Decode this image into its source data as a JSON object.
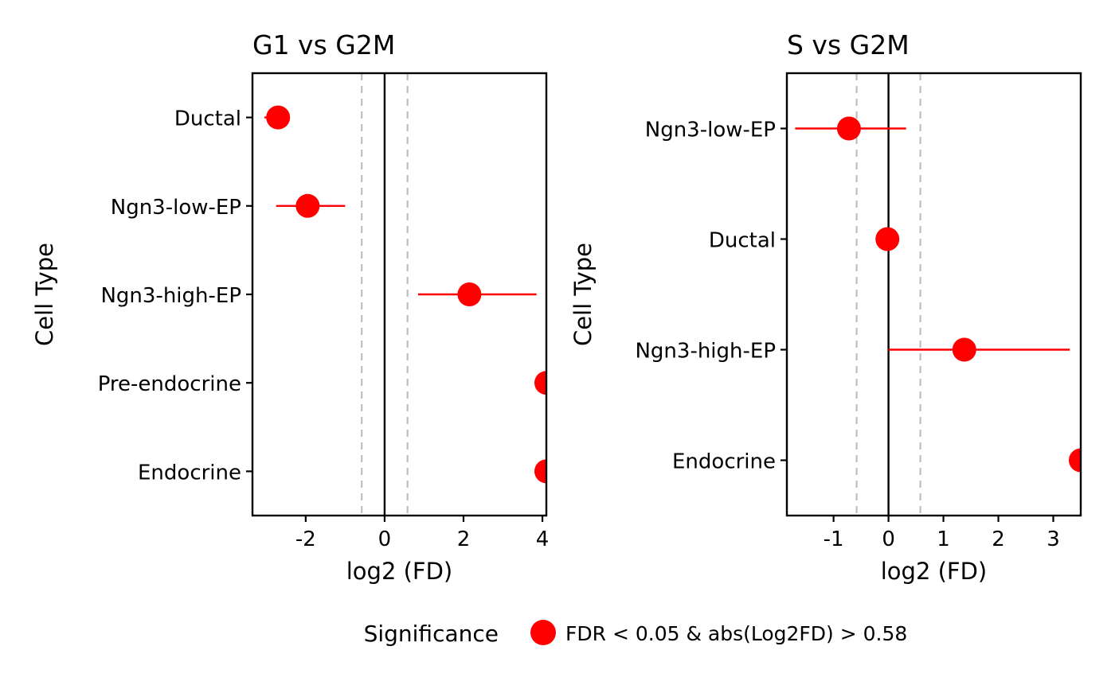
{
  "chart_data": [
    {
      "type": "scatter",
      "title": "G1 vs G2M",
      "xlabel": "log2 (FD)",
      "ylabel": "Cell Type",
      "xlim": [
        -3.35,
        4.1
      ],
      "xticks": [
        -2,
        0,
        2,
        4
      ],
      "xtick_labels": [
        "-2",
        "0",
        "2",
        "4"
      ],
      "categories": [
        "Ductal",
        "Ngn3-low-EP",
        "Ngn3-high-EP",
        "Pre-endocrine",
        "Endocrine"
      ],
      "points": [
        {
          "category": "Ductal",
          "x": -2.7,
          "lo": -3.05,
          "hi": -2.45
        },
        {
          "category": "Ngn3-low-EP",
          "x": -1.95,
          "lo": -2.75,
          "hi": -1.0
        },
        {
          "category": "Ngn3-high-EP",
          "x": 2.15,
          "lo": 0.85,
          "hi": 3.85
        },
        {
          "category": "Pre-endocrine",
          "x": 4.1,
          "lo": 4.1,
          "hi": 4.1
        },
        {
          "category": "Endocrine",
          "x": 4.1,
          "lo": 4.1,
          "hi": 4.1
        }
      ],
      "reference_lines": {
        "zero": 0,
        "thresholds": [
          -0.58,
          0.58
        ]
      }
    },
    {
      "type": "scatter",
      "title": "S vs G2M",
      "xlabel": "log2 (FD)",
      "ylabel": "Cell Type",
      "xlim": [
        -1.85,
        3.5
      ],
      "xticks": [
        -1,
        0,
        1,
        2,
        3
      ],
      "xtick_labels": [
        "-1",
        "0",
        "1",
        "2",
        "3"
      ],
      "categories": [
        "Ngn3-low-EP",
        "Ductal",
        "Ngn3-high-EP",
        "Endocrine"
      ],
      "points": [
        {
          "category": "Ngn3-low-EP",
          "x": -0.72,
          "lo": -1.7,
          "hi": 0.32
        },
        {
          "category": "Ductal",
          "x": -0.02,
          "lo": -0.02,
          "hi": -0.02
        },
        {
          "category": "Ngn3-high-EP",
          "x": 1.38,
          "lo": 0.0,
          "hi": 3.3
        },
        {
          "category": "Endocrine",
          "x": 3.5,
          "lo": 3.5,
          "hi": 3.5
        }
      ],
      "reference_lines": {
        "zero": 0,
        "thresholds": [
          -0.58,
          0.58
        ]
      }
    }
  ],
  "legend": {
    "title": "Significance",
    "placement": "bottom",
    "entries": [
      {
        "label": "FDR < 0.05 & abs(Log2FD) > 0.58",
        "color": "#ff0000"
      }
    ]
  },
  "colors": {
    "point": "#ff0000",
    "errorbar": "#ff0000",
    "zero_line": "#000000",
    "threshold_line": "#bebebe",
    "frame": "#000000"
  }
}
